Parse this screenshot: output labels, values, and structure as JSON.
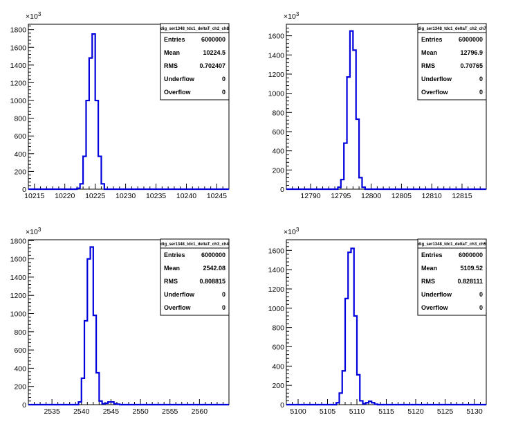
{
  "chart_data": [
    {
      "type": "histogram",
      "y_multiplier": "10^{3}",
      "xlim": [
        10214,
        10247
      ],
      "ylim": [
        0,
        1860
      ],
      "x_ticks": [
        "10215",
        "10220",
        "10225",
        "10230",
        "10235",
        "10240",
        "10245"
      ],
      "y_ticks": [
        "0",
        "200",
        "400",
        "600",
        "800",
        "1000",
        "1200",
        "1400",
        "1600",
        "1800"
      ],
      "bins": {
        "edges": [
          10222,
          10222.5,
          10223,
          10223.5,
          10224,
          10224.5,
          10225,
          10225.5,
          10226,
          10226.5
        ],
        "values": [
          10,
          60,
          370,
          1000,
          1480,
          1750,
          1000,
          370,
          60
        ]
      },
      "stats": {
        "title": "dig_ser1348_tdc1_deltaT_ch2_ch8",
        "rows": [
          {
            "label": "Entries",
            "value": "6000000"
          },
          {
            "label": "Mean",
            "value": "10224.5"
          },
          {
            "label": "RMS",
            "value": "0.702407"
          },
          {
            "label": "Underflow",
            "value": "0"
          },
          {
            "label": "Overflow",
            "value": "0"
          }
        ]
      }
    },
    {
      "type": "histogram",
      "y_multiplier": "10^{3}",
      "xlim": [
        12786,
        12819
      ],
      "ylim": [
        0,
        1720
      ],
      "x_ticks": [
        "12790",
        "12795",
        "12800",
        "12805",
        "12810",
        "12815"
      ],
      "y_ticks": [
        "0",
        "200",
        "400",
        "600",
        "800",
        "1000",
        "1200",
        "1400",
        "1600"
      ],
      "bins": {
        "edges": [
          12794.5,
          12795,
          12795.5,
          12796,
          12796.5,
          12797,
          12797.5,
          12798,
          12798.5,
          12799
        ],
        "values": [
          20,
          100,
          480,
          1170,
          1650,
          1450,
          730,
          120,
          20
        ]
      },
      "stats": {
        "title": "dig_ser1348_tdc1_deltaT_ch2_ch7",
        "rows": [
          {
            "label": "Entries",
            "value": "6000000"
          },
          {
            "label": "Mean",
            "value": "12796.9"
          },
          {
            "label": "RMS",
            "value": "0.70765"
          },
          {
            "label": "Underflow",
            "value": "0"
          },
          {
            "label": "Overflow",
            "value": "0"
          }
        ]
      }
    },
    {
      "type": "histogram",
      "y_multiplier": "10^{3}",
      "xlim": [
        2531,
        2565
      ],
      "ylim": [
        0,
        1810
      ],
      "x_ticks": [
        "2535",
        "2540",
        "2545",
        "2550",
        "2555",
        "2560"
      ],
      "y_ticks": [
        "0",
        "200",
        "400",
        "600",
        "800",
        "1000",
        "1200",
        "1400",
        "1600",
        "1800"
      ],
      "bins": {
        "edges": [
          2539.5,
          2540,
          2540.5,
          2541,
          2541.5,
          2542,
          2542.5,
          2543,
          2543.5,
          2544,
          2544.5,
          2545,
          2545.5,
          2546,
          2546.5
        ],
        "values": [
          30,
          290,
          920,
          1600,
          1730,
          980,
          350,
          40,
          10,
          15,
          30,
          30,
          10,
          5
        ]
      },
      "stats": {
        "title": "dig_ser1348_tdc1_deltaT_ch3_ch4",
        "rows": [
          {
            "label": "Entries",
            "value": "6000000"
          },
          {
            "label": "Mean",
            "value": "2542.08"
          },
          {
            "label": "RMS",
            "value": "0.808815"
          },
          {
            "label": "Underflow",
            "value": "0"
          },
          {
            "label": "Overflow",
            "value": "0"
          }
        ]
      }
    },
    {
      "type": "histogram",
      "y_multiplier": "10^{3}",
      "xlim": [
        5098,
        5132
      ],
      "ylim": [
        0,
        1710
      ],
      "x_ticks": [
        "5100",
        "5105",
        "5110",
        "5115",
        "5120",
        "5125",
        "5130"
      ],
      "y_ticks": [
        "0",
        "200",
        "400",
        "600",
        "800",
        "1000",
        "1200",
        "1400",
        "1600"
      ],
      "bins": {
        "edges": [
          5106.5,
          5107,
          5107.5,
          5108,
          5108.5,
          5109,
          5109.5,
          5110,
          5110.5,
          5111,
          5111.5,
          5112,
          5112.5,
          5113,
          5113.5
        ],
        "values": [
          20,
          120,
          350,
          1100,
          1580,
          1620,
          920,
          310,
          40,
          10,
          20,
          35,
          20,
          5
        ]
      },
      "stats": {
        "title": "dig_ser1348_tdc1_deltaT_ch3_ch5",
        "rows": [
          {
            "label": "Entries",
            "value": "6000000"
          },
          {
            "label": "Mean",
            "value": "5109.52"
          },
          {
            "label": "RMS",
            "value": "0.828111"
          },
          {
            "label": "Underflow",
            "value": "0"
          },
          {
            "label": "Overflow",
            "value": "0"
          }
        ]
      }
    }
  ]
}
